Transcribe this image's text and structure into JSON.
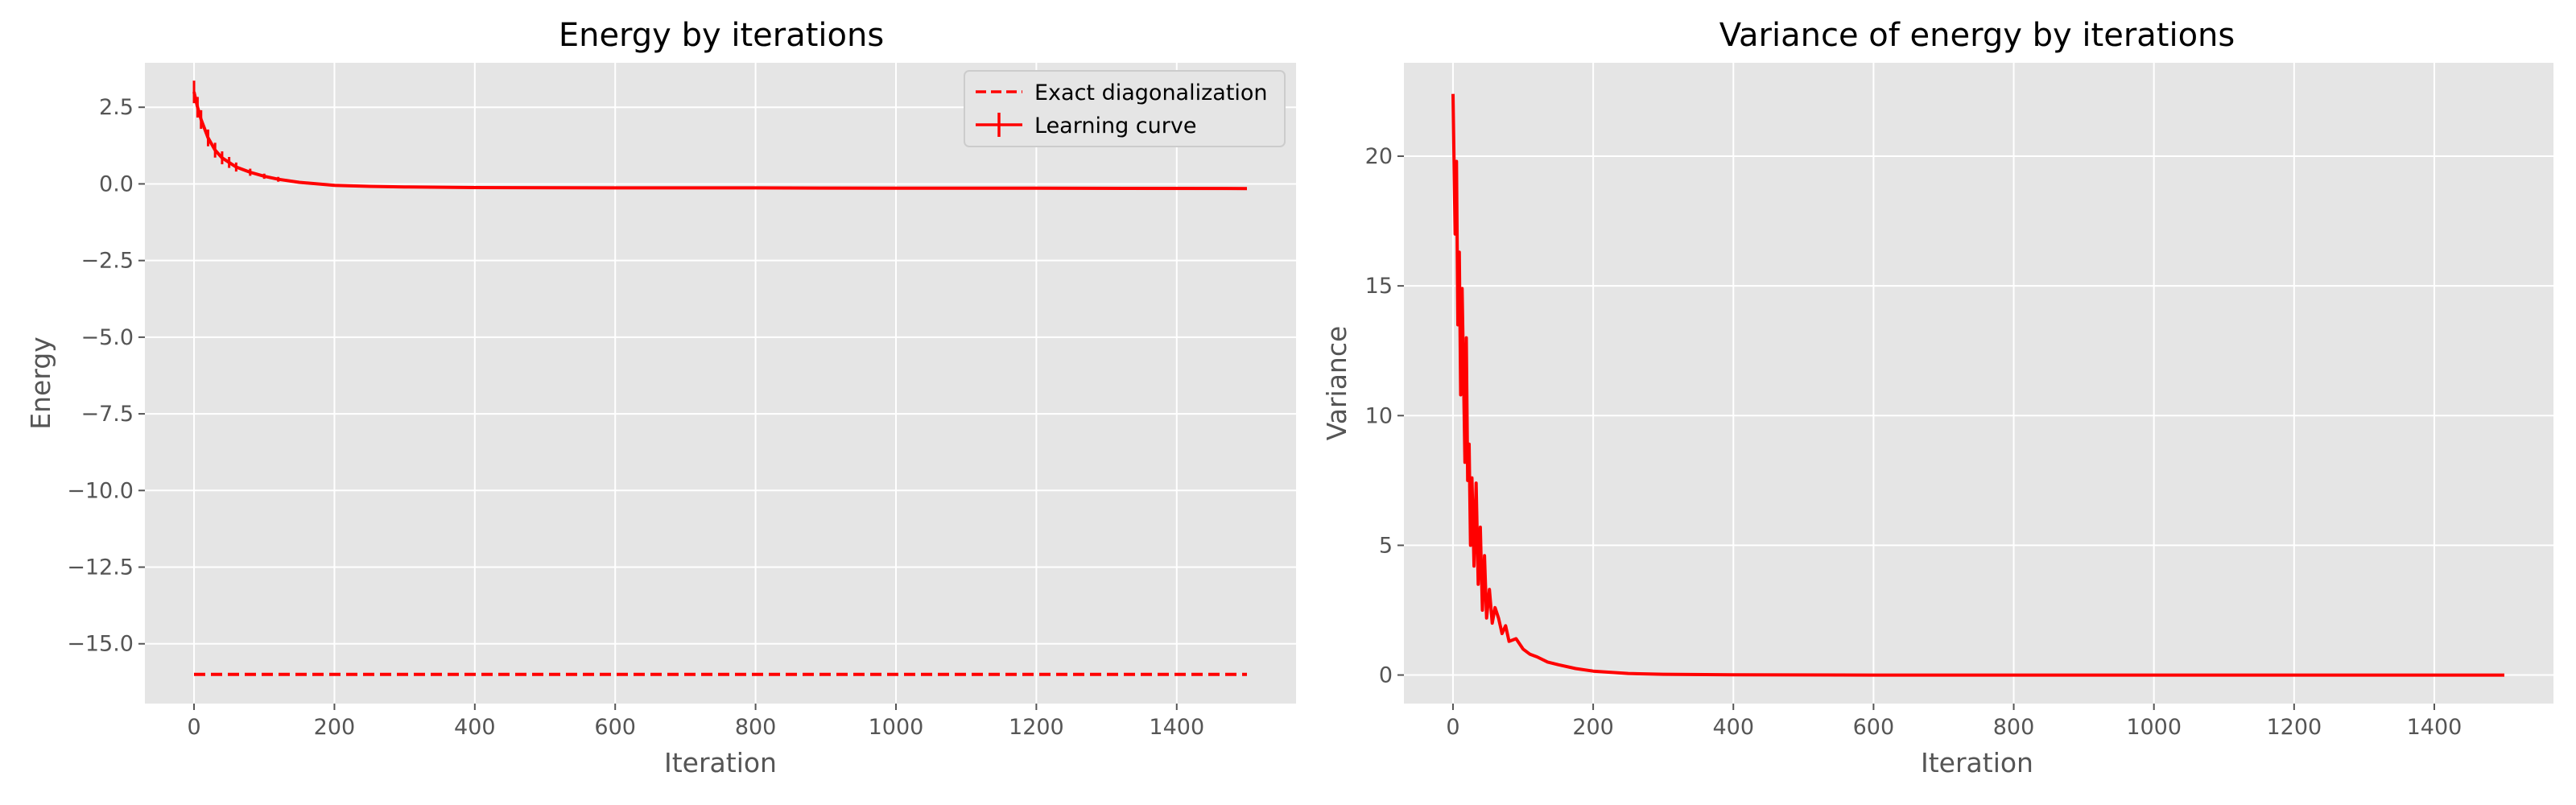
{
  "chart_data": [
    {
      "type": "line",
      "title": "Energy by iterations",
      "xlabel": "Iteration",
      "ylabel": "Energy",
      "xlim": [
        -70,
        1570
      ],
      "ylim": [
        -16.95,
        3.95
      ],
      "xticks": [
        0,
        200,
        400,
        600,
        800,
        1000,
        1200,
        1400
      ],
      "yticks": [
        2.5,
        0.0,
        -2.5,
        -5.0,
        -7.5,
        -10.0,
        -12.5,
        -15.0
      ],
      "ytick_labels": [
        "2.5",
        "0.0",
        "−2.5",
        "−5.0",
        "−7.5",
        "−10.0",
        "−12.5",
        "−15.0"
      ],
      "grid": true,
      "legend": "top-right",
      "series": [
        {
          "name": "Exact diagonalization",
          "style": "dashed",
          "color": "#ff0000",
          "x": [
            0,
            1500
          ],
          "y": [
            -16.0,
            -16.0
          ]
        },
        {
          "name": "Learning curve",
          "style": "solid-errorbar",
          "color": "#ff0000",
          "x": [
            0,
            5,
            10,
            20,
            30,
            40,
            50,
            60,
            80,
            100,
            120,
            150,
            200,
            250,
            300,
            400,
            600,
            800,
            1000,
            1200,
            1500
          ],
          "y": [
            3.0,
            2.5,
            2.1,
            1.5,
            1.1,
            0.85,
            0.7,
            0.55,
            0.38,
            0.25,
            0.15,
            0.05,
            -0.05,
            -0.08,
            -0.1,
            -0.12,
            -0.13,
            -0.13,
            -0.14,
            -0.14,
            -0.15
          ]
        }
      ]
    },
    {
      "type": "line",
      "title": "Variance of energy by iterations",
      "xlabel": "Iteration",
      "ylabel": "Variance",
      "xlim": [
        -70,
        1570
      ],
      "ylim": [
        -1.1,
        23.6
      ],
      "xticks": [
        0,
        200,
        400,
        600,
        800,
        1000,
        1200,
        1400
      ],
      "yticks": [
        0,
        5,
        10,
        15,
        20
      ],
      "ytick_labels": [
        "0",
        "5",
        "10",
        "15",
        "20"
      ],
      "grid": true,
      "series": [
        {
          "color": "#ff0000",
          "x": [
            0,
            3,
            5,
            7,
            9,
            11,
            13,
            15,
            17,
            19,
            21,
            23,
            25,
            27,
            30,
            33,
            36,
            39,
            42,
            45,
            48,
            52,
            56,
            60,
            65,
            70,
            75,
            80,
            90,
            100,
            110,
            120,
            135,
            150,
            175,
            200,
            250,
            300,
            400,
            600,
            800,
            1000,
            1200,
            1500
          ],
          "y": [
            22.4,
            17.0,
            19.8,
            13.5,
            16.3,
            10.8,
            14.9,
            11.7,
            8.2,
            13.0,
            7.5,
            8.9,
            5.0,
            7.6,
            4.2,
            7.4,
            3.5,
            5.7,
            2.5,
            4.6,
            2.2,
            3.3,
            2.0,
            2.6,
            2.2,
            1.6,
            1.9,
            1.3,
            1.4,
            1.0,
            0.8,
            0.7,
            0.5,
            0.4,
            0.25,
            0.15,
            0.06,
            0.03,
            0.01,
            0.0,
            0.0,
            0.0,
            0.0,
            0.0
          ]
        }
      ]
    }
  ]
}
